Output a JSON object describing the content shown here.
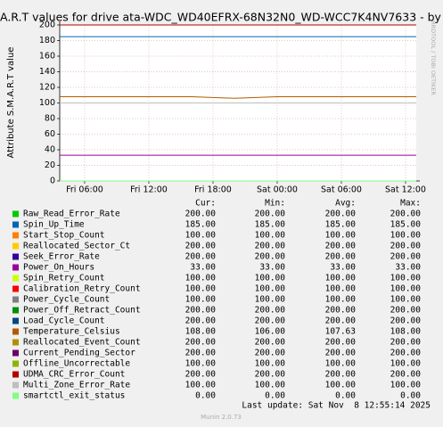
{
  "chart_data": {
    "type": "line",
    "title": "A.R.T values for drive ata-WDC_WD40EFRX-68N32N0_WD-WCC7K4NV7633 - by",
    "y_label": "Attribute S.M.A.R.T value",
    "watermark": "RRDTOOL / TOBI OETIKER",
    "x": [
      3.67,
      8,
      12,
      16,
      20,
      24,
      28,
      32,
      37
    ],
    "xlim": [
      3.67,
      37
    ],
    "xticks": [
      {
        "value": 6,
        "label": "Fri 06:00"
      },
      {
        "value": 12,
        "label": "Fri 12:00"
      },
      {
        "value": 18,
        "label": "Fri 18:00"
      },
      {
        "value": 24,
        "label": "Sat 00:00"
      },
      {
        "value": 30,
        "label": "Sat 06:00"
      },
      {
        "value": 36,
        "label": "Sat 12:00"
      }
    ],
    "ylim": [
      0,
      200
    ],
    "yticks": [
      0,
      20,
      40,
      60,
      80,
      100,
      120,
      140,
      160,
      180,
      200
    ],
    "grid": true,
    "stats_headers": [
      "Cur:",
      "Min:",
      "Avg:",
      "Max:"
    ],
    "series": [
      {
        "name": "Raw_Read_Error_Rate",
        "color": "#00cc00",
        "values": [
          200,
          200,
          200,
          200,
          200,
          200,
          200,
          200,
          200
        ],
        "stats": [
          "200.00",
          "200.00",
          "200.00",
          "200.00"
        ]
      },
      {
        "name": "Spin_Up_Time",
        "color": "#0066b3",
        "values": [
          185,
          185,
          185,
          185,
          185,
          185,
          185,
          185,
          185
        ],
        "stats": [
          "185.00",
          "185.00",
          "185.00",
          "185.00"
        ]
      },
      {
        "name": "Start_Stop_Count",
        "color": "#ff8000",
        "values": [
          100,
          100,
          100,
          100,
          100,
          100,
          100,
          100,
          100
        ],
        "stats": [
          "100.00",
          "100.00",
          "100.00",
          "100.00"
        ]
      },
      {
        "name": "Reallocated_Sector_Ct",
        "color": "#ffcc00",
        "values": [
          200,
          200,
          200,
          200,
          200,
          200,
          200,
          200,
          200
        ],
        "stats": [
          "200.00",
          "200.00",
          "200.00",
          "200.00"
        ]
      },
      {
        "name": "Seek_Error_Rate",
        "color": "#330099",
        "values": [
          200,
          200,
          200,
          200,
          200,
          200,
          200,
          200,
          200
        ],
        "stats": [
          "200.00",
          "200.00",
          "200.00",
          "200.00"
        ]
      },
      {
        "name": "Power_On_Hours",
        "color": "#990099",
        "values": [
          33,
          33,
          33,
          33,
          33,
          33,
          33,
          33,
          33
        ],
        "stats": [
          "33.00",
          "33.00",
          "33.00",
          "33.00"
        ]
      },
      {
        "name": "Spin_Retry_Count",
        "color": "#ccff00",
        "values": [
          100,
          100,
          100,
          100,
          100,
          100,
          100,
          100,
          100
        ],
        "stats": [
          "100.00",
          "100.00",
          "100.00",
          "100.00"
        ]
      },
      {
        "name": "Calibration_Retry_Count",
        "color": "#ff0000",
        "values": [
          100,
          100,
          100,
          100,
          100,
          100,
          100,
          100,
          100
        ],
        "stats": [
          "100.00",
          "100.00",
          "100.00",
          "100.00"
        ]
      },
      {
        "name": "Power_Cycle_Count",
        "color": "#808080",
        "values": [
          100,
          100,
          100,
          100,
          100,
          100,
          100,
          100,
          100
        ],
        "stats": [
          "100.00",
          "100.00",
          "100.00",
          "100.00"
        ]
      },
      {
        "name": "Power_Off_Retract_Count",
        "color": "#008f00",
        "values": [
          200,
          200,
          200,
          200,
          200,
          200,
          200,
          200,
          200
        ],
        "stats": [
          "200.00",
          "200.00",
          "200.00",
          "200.00"
        ]
      },
      {
        "name": "Load_Cycle_Count",
        "color": "#00487d",
        "values": [
          200,
          200,
          200,
          200,
          200,
          200,
          200,
          200,
          200
        ],
        "stats": [
          "200.00",
          "200.00",
          "200.00",
          "200.00"
        ]
      },
      {
        "name": "Temperature_Celsius",
        "color": "#b35a00",
        "values": [
          108,
          108,
          108,
          108,
          106,
          108,
          108,
          108,
          108
        ],
        "stats": [
          "108.00",
          "106.00",
          "107.63",
          "108.00"
        ]
      },
      {
        "name": "Reallocated_Event_Count",
        "color": "#b38f00",
        "values": [
          200,
          200,
          200,
          200,
          200,
          200,
          200,
          200,
          200
        ],
        "stats": [
          "200.00",
          "200.00",
          "200.00",
          "200.00"
        ]
      },
      {
        "name": "Current_Pending_Sector",
        "color": "#6b006b",
        "values": [
          200,
          200,
          200,
          200,
          200,
          200,
          200,
          200,
          200
        ],
        "stats": [
          "200.00",
          "200.00",
          "200.00",
          "200.00"
        ]
      },
      {
        "name": "Offline_Uncorrectable",
        "color": "#8fb300",
        "values": [
          100,
          100,
          100,
          100,
          100,
          100,
          100,
          100,
          100
        ],
        "stats": [
          "100.00",
          "100.00",
          "100.00",
          "100.00"
        ]
      },
      {
        "name": "UDMA_CRC_Error_Count",
        "color": "#b30000",
        "values": [
          200,
          200,
          200,
          200,
          200,
          200,
          200,
          200,
          200
        ],
        "stats": [
          "200.00",
          "200.00",
          "200.00",
          "200.00"
        ]
      },
      {
        "name": "Multi_Zone_Error_Rate",
        "color": "#bebebe",
        "values": [
          100,
          100,
          100,
          100,
          100,
          100,
          100,
          100,
          100
        ],
        "stats": [
          "100.00",
          "100.00",
          "100.00",
          "100.00"
        ]
      },
      {
        "name": "smartctl_exit_status",
        "color": "#80ff80",
        "values": [
          0,
          0,
          0,
          0,
          0,
          0,
          0,
          0,
          0
        ],
        "stats": [
          "0.00",
          "0.00",
          "0.00",
          "0.00"
        ]
      }
    ],
    "last_update": "Last update: Sat Nov  8 12:55:14 2025",
    "footer": "Munin 2.0.73"
  }
}
